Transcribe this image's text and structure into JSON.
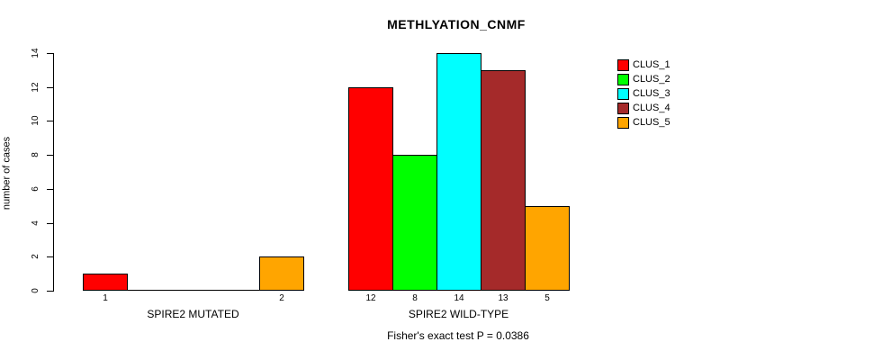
{
  "title": "METHLYATION_CNMF",
  "chart_data": {
    "type": "bar",
    "title": "METHLYATION_CNMF",
    "ylabel": "number of cases",
    "xlabel": "",
    "ylim": [
      0,
      14
    ],
    "yticks": [
      0,
      2,
      4,
      6,
      8,
      10,
      12,
      14
    ],
    "grid": false,
    "legend_position": "right",
    "legend": [
      {
        "label": "CLUS_1",
        "color": "#FF0000"
      },
      {
        "label": "CLUS_2",
        "color": "#00FF00"
      },
      {
        "label": "CLUS_3",
        "color": "#00FFFF"
      },
      {
        "label": "CLUS_4",
        "color": "#A52A2A"
      },
      {
        "label": "CLUS_5",
        "color": "#FFA500"
      }
    ],
    "groups": [
      {
        "label": "SPIRE2 MUTATED",
        "values": [
          1,
          0,
          0,
          0,
          2
        ],
        "value_labels": [
          "1",
          "",
          "",
          "",
          "2"
        ]
      },
      {
        "label": "SPIRE2 WILD-TYPE",
        "values": [
          12,
          8,
          14,
          13,
          5
        ],
        "value_labels": [
          "12",
          "8",
          "14",
          "13",
          "5"
        ]
      }
    ],
    "annotation": "Fisher's exact test P = 0.0386"
  }
}
